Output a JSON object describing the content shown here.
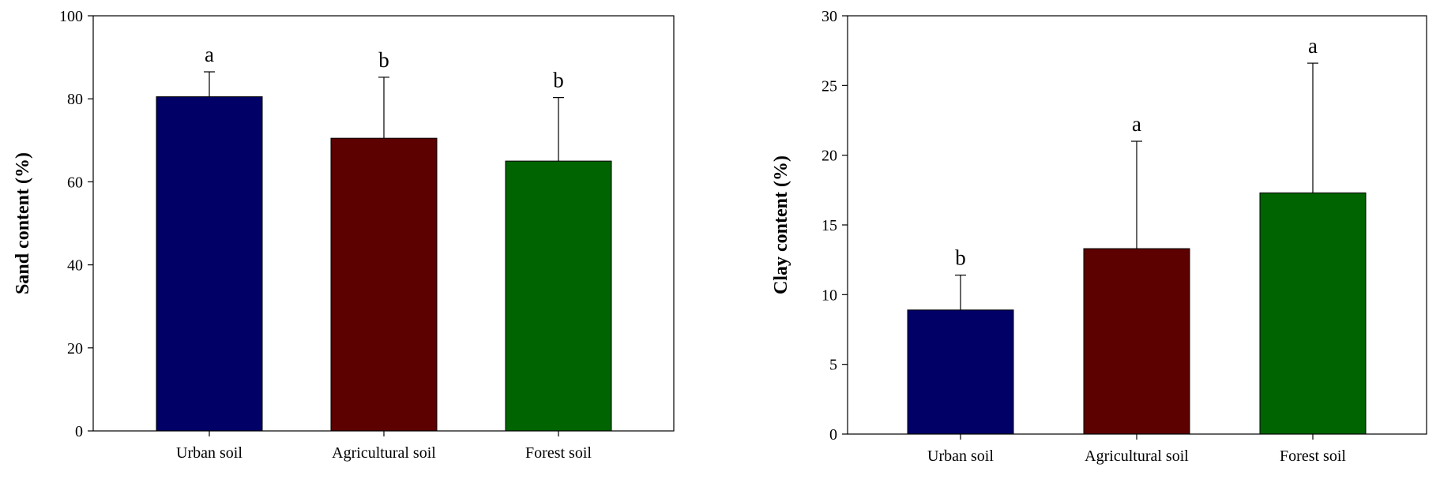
{
  "chart_data": [
    {
      "type": "bar",
      "title": "",
      "xlabel": "",
      "ylabel": "Sand content (%)",
      "ylim": [
        0,
        100
      ],
      "yticks": [
        0,
        20,
        40,
        60,
        80,
        100
      ],
      "ytick_labels": [
        "0",
        "20",
        "40",
        "60",
        "80",
        "100"
      ],
      "categories": [
        "Urban soil",
        "Agricultural soil",
        "Forest soil"
      ],
      "values": [
        80.5,
        70.5,
        65
      ],
      "errors": [
        6,
        14.7,
        15.3
      ],
      "significance": [
        "a",
        "b",
        "b"
      ],
      "colors": [
        "#000066",
        "#5c0000",
        "#006400"
      ]
    },
    {
      "type": "bar",
      "title": "",
      "xlabel": "",
      "ylabel": "Clay content (%)",
      "ylim": [
        0,
        30
      ],
      "yticks": [
        0,
        5,
        10,
        15,
        20,
        25,
        30
      ],
      "ytick_labels": [
        "0",
        "5",
        "10",
        "15",
        "20",
        "25",
        "30"
      ],
      "categories": [
        "Urban soil",
        "Agricultural soil",
        "Forest soil"
      ],
      "values": [
        8.9,
        13.3,
        17.3
      ],
      "errors": [
        2.5,
        7.7,
        9.3
      ],
      "significance": [
        "b",
        "a",
        "a"
      ],
      "colors": [
        "#000066",
        "#5c0000",
        "#006400"
      ]
    }
  ]
}
